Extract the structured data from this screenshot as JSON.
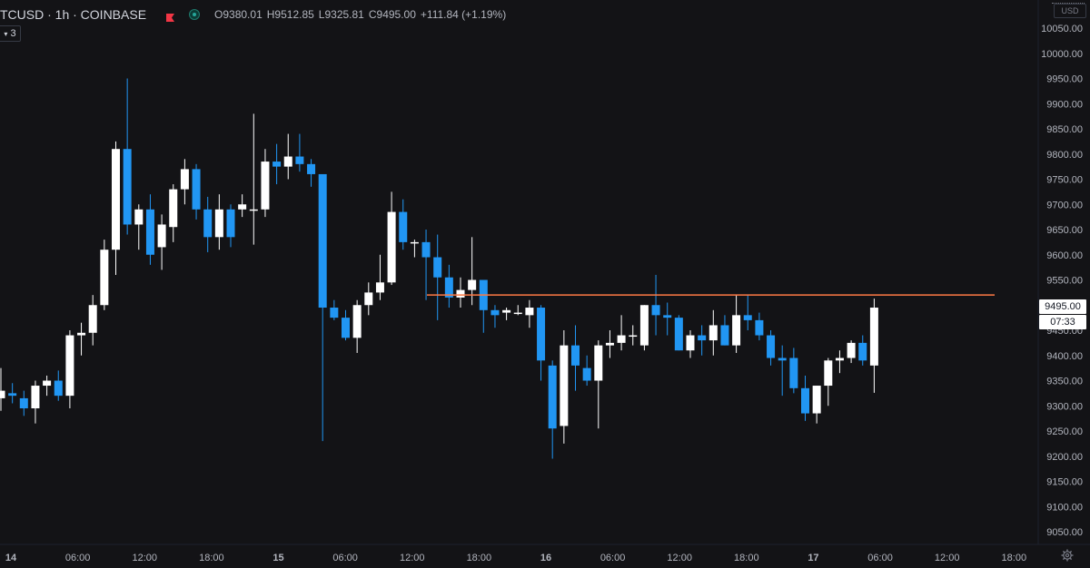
{
  "header": {
    "symbol": "TCUSD · 1h · COINBASE",
    "open": "O9380.01",
    "high": "H9512.85",
    "low": "L9325.81",
    "close": "C9495.00",
    "change": "+111.84 (+1.19%)",
    "indicator_count": "3"
  },
  "axis": {
    "currency": "USD",
    "last_price_label": "9495.00",
    "countdown_label": "07:33"
  },
  "colors": {
    "background": "#131316",
    "up": "#ffffff",
    "down": "#2196f3",
    "resistance": "#ff7a45",
    "flag": "#f23645"
  },
  "chart_data": {
    "type": "candlestick",
    "title": "",
    "xlabel": "",
    "ylabel": "",
    "ylim": [
      9030,
      10100
    ],
    "y_ticks": [
      10050,
      10000,
      9950,
      9900,
      9850,
      9800,
      9750,
      9700,
      9650,
      9600,
      9550,
      9450,
      9400,
      9350,
      9300,
      9250,
      9200,
      9150,
      9100,
      9050
    ],
    "x_ticks": [
      "14",
      "06:00",
      "12:00",
      "18:00",
      "15",
      "06:00",
      "12:00",
      "18:00",
      "16",
      "06:00",
      "12:00",
      "18:00",
      "17",
      "06:00",
      "12:00",
      "18:00"
    ],
    "resistance_level": 9520,
    "last_price": 9495.0,
    "grid": false,
    "candles": [
      {
        "o": 9315,
        "h": 9375,
        "l": 9290,
        "c": 9330
      },
      {
        "o": 9325,
        "h": 9345,
        "l": 9305,
        "c": 9320
      },
      {
        "o": 9315,
        "h": 9330,
        "l": 9280,
        "c": 9295
      },
      {
        "o": 9295,
        "h": 9350,
        "l": 9265,
        "c": 9340
      },
      {
        "o": 9340,
        "h": 9360,
        "l": 9320,
        "c": 9350
      },
      {
        "o": 9350,
        "h": 9370,
        "l": 9310,
        "c": 9320
      },
      {
        "o": 9320,
        "h": 9450,
        "l": 9295,
        "c": 9440
      },
      {
        "o": 9440,
        "h": 9465,
        "l": 9400,
        "c": 9445
      },
      {
        "o": 9445,
        "h": 9520,
        "l": 9420,
        "c": 9500
      },
      {
        "o": 9500,
        "h": 9630,
        "l": 9490,
        "c": 9610
      },
      {
        "o": 9610,
        "h": 9825,
        "l": 9560,
        "c": 9810
      },
      {
        "o": 9810,
        "h": 9950,
        "l": 9640,
        "c": 9660
      },
      {
        "o": 9660,
        "h": 9700,
        "l": 9610,
        "c": 9690
      },
      {
        "o": 9690,
        "h": 9720,
        "l": 9580,
        "c": 9600
      },
      {
        "o": 9615,
        "h": 9680,
        "l": 9570,
        "c": 9660
      },
      {
        "o": 9655,
        "h": 9740,
        "l": 9625,
        "c": 9730
      },
      {
        "o": 9730,
        "h": 9790,
        "l": 9700,
        "c": 9770
      },
      {
        "o": 9770,
        "h": 9780,
        "l": 9670,
        "c": 9690
      },
      {
        "o": 9690,
        "h": 9715,
        "l": 9605,
        "c": 9635
      },
      {
        "o": 9635,
        "h": 9720,
        "l": 9610,
        "c": 9690
      },
      {
        "o": 9690,
        "h": 9700,
        "l": 9615,
        "c": 9635
      },
      {
        "o": 9690,
        "h": 9720,
        "l": 9675,
        "c": 9700
      },
      {
        "o": 9690,
        "h": 9880,
        "l": 9620,
        "c": 9690
      },
      {
        "o": 9690,
        "h": 9810,
        "l": 9675,
        "c": 9785
      },
      {
        "o": 9785,
        "h": 9820,
        "l": 9740,
        "c": 9775
      },
      {
        "o": 9775,
        "h": 9840,
        "l": 9750,
        "c": 9795
      },
      {
        "o": 9795,
        "h": 9840,
        "l": 9765,
        "c": 9780
      },
      {
        "o": 9780,
        "h": 9790,
        "l": 9735,
        "c": 9760
      },
      {
        "o": 9760,
        "h": 9760,
        "l": 9230,
        "c": 9495
      },
      {
        "o": 9495,
        "h": 9510,
        "l": 9470,
        "c": 9475
      },
      {
        "o": 9475,
        "h": 9490,
        "l": 9430,
        "c": 9435
      },
      {
        "o": 9435,
        "h": 9510,
        "l": 9405,
        "c": 9500
      },
      {
        "o": 9500,
        "h": 9545,
        "l": 9480,
        "c": 9525
      },
      {
        "o": 9525,
        "h": 9600,
        "l": 9510,
        "c": 9545
      },
      {
        "o": 9545,
        "h": 9725,
        "l": 9540,
        "c": 9685
      },
      {
        "o": 9685,
        "h": 9710,
        "l": 9610,
        "c": 9625
      },
      {
        "o": 9625,
        "h": 9630,
        "l": 9595,
        "c": 9625
      },
      {
        "o": 9625,
        "h": 9650,
        "l": 9510,
        "c": 9595
      },
      {
        "o": 9595,
        "h": 9640,
        "l": 9470,
        "c": 9555
      },
      {
        "o": 9555,
        "h": 9580,
        "l": 9495,
        "c": 9515
      },
      {
        "o": 9515,
        "h": 9555,
        "l": 9495,
        "c": 9530
      },
      {
        "o": 9530,
        "h": 9635,
        "l": 9500,
        "c": 9550
      },
      {
        "o": 9550,
        "h": 9550,
        "l": 9445,
        "c": 9490
      },
      {
        "o": 9490,
        "h": 9500,
        "l": 9455,
        "c": 9480
      },
      {
        "o": 9485,
        "h": 9495,
        "l": 9470,
        "c": 9490
      },
      {
        "o": 9485,
        "h": 9500,
        "l": 9480,
        "c": 9485
      },
      {
        "o": 9480,
        "h": 9510,
        "l": 9455,
        "c": 9495
      },
      {
        "o": 9495,
        "h": 9500,
        "l": 9350,
        "c": 9390
      },
      {
        "o": 9380,
        "h": 9390,
        "l": 9195,
        "c": 9255
      },
      {
        "o": 9260,
        "h": 9450,
        "l": 9225,
        "c": 9420
      },
      {
        "o": 9420,
        "h": 9460,
        "l": 9330,
        "c": 9380
      },
      {
        "o": 9375,
        "h": 9400,
        "l": 9340,
        "c": 9350
      },
      {
        "o": 9350,
        "h": 9430,
        "l": 9255,
        "c": 9420
      },
      {
        "o": 9420,
        "h": 9450,
        "l": 9395,
        "c": 9425
      },
      {
        "o": 9425,
        "h": 9480,
        "l": 9410,
        "c": 9440
      },
      {
        "o": 9440,
        "h": 9460,
        "l": 9420,
        "c": 9440
      },
      {
        "o": 9420,
        "h": 9500,
        "l": 9410,
        "c": 9500
      },
      {
        "o": 9500,
        "h": 9560,
        "l": 9440,
        "c": 9480
      },
      {
        "o": 9480,
        "h": 9505,
        "l": 9440,
        "c": 9475
      },
      {
        "o": 9475,
        "h": 9480,
        "l": 9410,
        "c": 9410
      },
      {
        "o": 9410,
        "h": 9450,
        "l": 9395,
        "c": 9440
      },
      {
        "o": 9440,
        "h": 9460,
        "l": 9400,
        "c": 9430
      },
      {
        "o": 9430,
        "h": 9490,
        "l": 9400,
        "c": 9460
      },
      {
        "o": 9460,
        "h": 9480,
        "l": 9420,
        "c": 9420
      },
      {
        "o": 9420,
        "h": 9520,
        "l": 9405,
        "c": 9480
      },
      {
        "o": 9480,
        "h": 9520,
        "l": 9450,
        "c": 9470
      },
      {
        "o": 9470,
        "h": 9485,
        "l": 9430,
        "c": 9440
      },
      {
        "o": 9440,
        "h": 9450,
        "l": 9380,
        "c": 9395
      },
      {
        "o": 9395,
        "h": 9420,
        "l": 9320,
        "c": 9390
      },
      {
        "o": 9395,
        "h": 9415,
        "l": 9325,
        "c": 9335
      },
      {
        "o": 9335,
        "h": 9360,
        "l": 9270,
        "c": 9285
      },
      {
        "o": 9285,
        "h": 9340,
        "l": 9265,
        "c": 9340
      },
      {
        "o": 9340,
        "h": 9395,
        "l": 9300,
        "c": 9390
      },
      {
        "o": 9390,
        "h": 9410,
        "l": 9365,
        "c": 9395
      },
      {
        "o": 9395,
        "h": 9430,
        "l": 9385,
        "c": 9425
      },
      {
        "o": 9425,
        "h": 9440,
        "l": 9380,
        "c": 9390
      },
      {
        "o": 9380.01,
        "h": 9512.85,
        "l": 9325.81,
        "c": 9495.0
      }
    ]
  }
}
